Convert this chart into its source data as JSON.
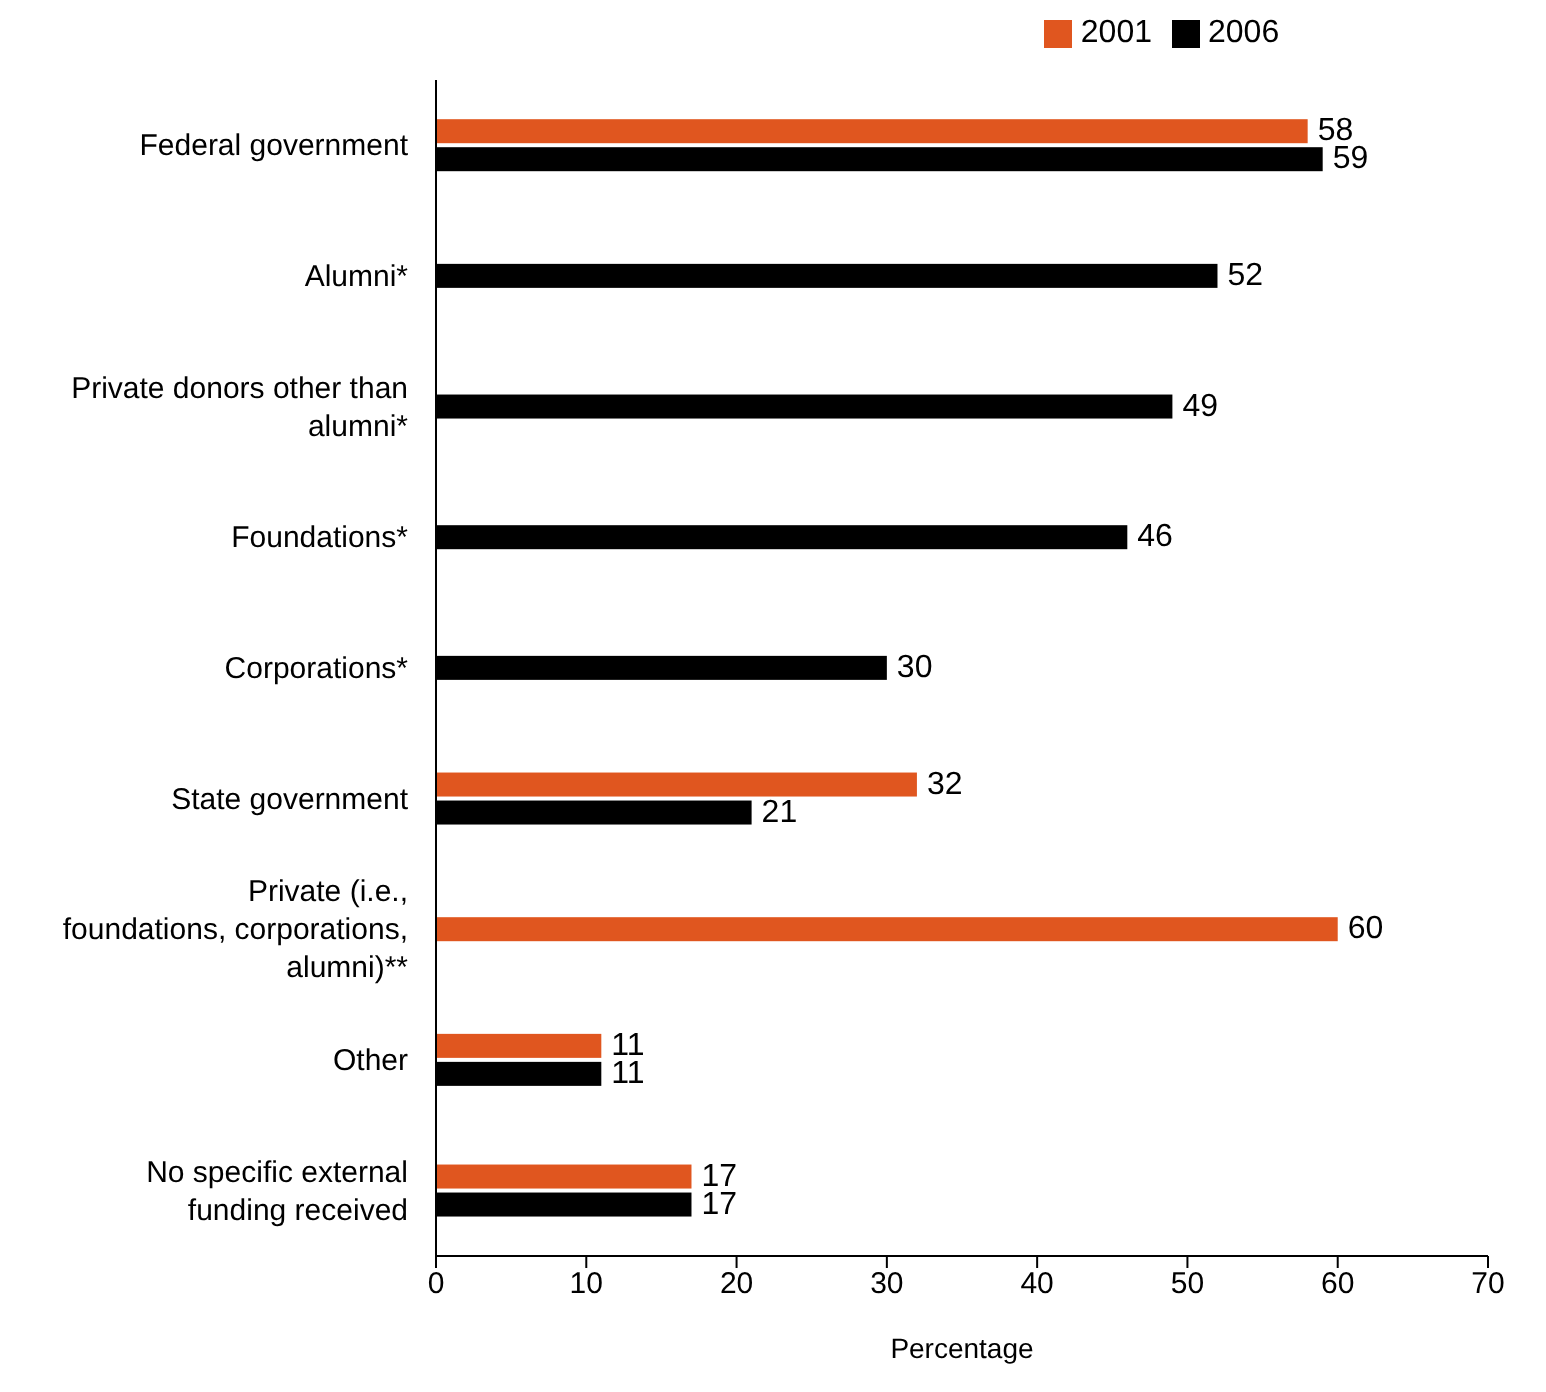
{
  "chart_data": {
    "type": "bar",
    "orientation": "horizontal",
    "categories": [
      "Federal government",
      "Alumni*",
      "Private donors other than alumni*",
      "Foundations*",
      "Corporations*",
      "State government",
      "Private (i.e., foundations, corporations, alumni)**",
      "Other",
      "No specific external funding received"
    ],
    "series": [
      {
        "name": "2001",
        "color": "#e0561f",
        "values": [
          58,
          null,
          null,
          null,
          null,
          32,
          60,
          11,
          17
        ]
      },
      {
        "name": "2006",
        "color": "#000000",
        "values": [
          59,
          52,
          49,
          46,
          30,
          21,
          null,
          11,
          17
        ]
      }
    ],
    "xlabel": "Percentage",
    "xlim": [
      0,
      70
    ],
    "xticks": [
      0,
      10,
      20,
      30,
      40,
      50,
      60,
      70
    ],
    "data_labels": true,
    "legend": "top",
    "grid": false
  }
}
